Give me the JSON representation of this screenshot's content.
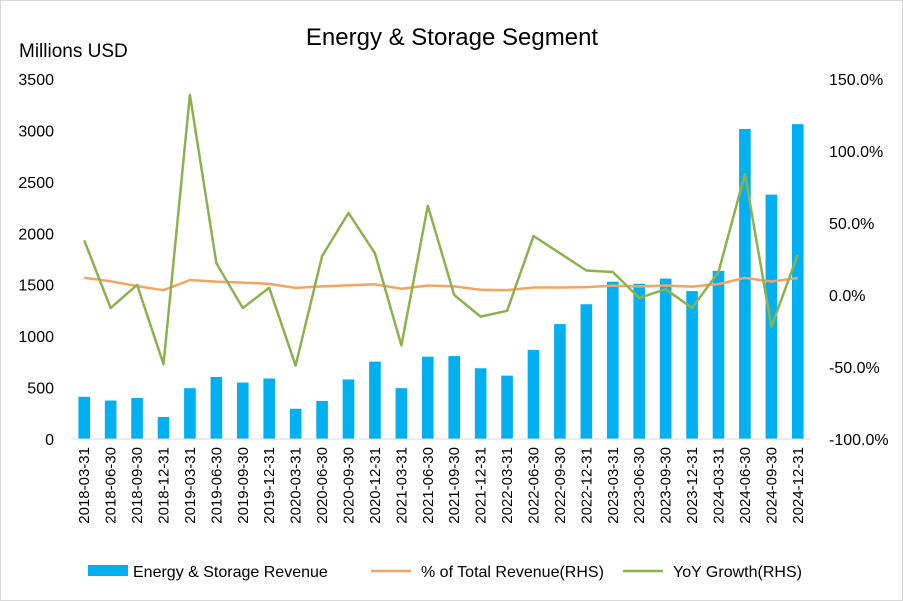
{
  "chart_data": {
    "type": "bar",
    "title": "Energy & Storage Segment",
    "ylabel": "Millions USD",
    "ylim": [
      0,
      3500
    ],
    "yticks": [
      0,
      500,
      1000,
      1500,
      2000,
      2500,
      3000,
      3500
    ],
    "y2lim": [
      -100,
      150
    ],
    "y2ticks": [
      "-100.0%",
      "-50.0%",
      "0.0%",
      "50.0%",
      "100.0%",
      "150.0%"
    ],
    "y2tick_values": [
      -100,
      -50,
      0,
      50,
      100,
      150
    ],
    "grid": false,
    "legend_position": "bottom",
    "categories": [
      "2018-03-31",
      "2018-06-30",
      "2018-09-30",
      "2018-12-31",
      "2019-03-31",
      "2019-06-30",
      "2019-09-30",
      "2019-12-31",
      "2020-03-31",
      "2020-06-30",
      "2020-09-30",
      "2020-12-31",
      "2021-03-31",
      "2021-06-30",
      "2021-09-30",
      "2021-12-31",
      "2022-03-31",
      "2022-06-30",
      "2022-09-30",
      "2022-12-31",
      "2023-03-31",
      "2023-06-30",
      "2023-09-30",
      "2023-12-31",
      "2024-03-31",
      "2024-06-30",
      "2024-09-30",
      "2024-12-31"
    ],
    "series": [
      {
        "name": "Energy & Storage Revenue",
        "type": "bar",
        "axis": "left",
        "color": "#00B0F0",
        "values": [
          410,
          374,
          399,
          214,
          494,
          603,
          549,
          588,
          294,
          370,
          579,
          752,
          494,
          801,
          806,
          688,
          616,
          866,
          1117,
          1310,
          1529,
          1509,
          1559,
          1438,
          1635,
          3014,
          2376,
          3061
        ]
      },
      {
        "name": "% of Total Revenue(RHS)",
        "type": "line",
        "axis": "right",
        "color": "#F4A460",
        "values": [
          12.0,
          9.5,
          6.2,
          3.3,
          10.4,
          9.3,
          8.6,
          7.7,
          4.9,
          6.0,
          6.7,
          7.4,
          4.4,
          6.6,
          6.0,
          3.6,
          3.4,
          5.2,
          5.2,
          5.5,
          6.5,
          6.0,
          6.6,
          5.8,
          7.6,
          11.9,
          9.4,
          11.8
        ]
      },
      {
        "name": "YoY Growth(RHS)",
        "type": "line",
        "axis": "right",
        "color": "#8DB14F",
        "values": [
          38,
          -9,
          7,
          -48,
          139,
          22,
          -9,
          5,
          -49,
          27,
          57,
          29,
          -35,
          62,
          0,
          -15,
          -11,
          41,
          29,
          17,
          16,
          -2,
          4,
          -9,
          16,
          84,
          -22,
          28
        ]
      }
    ]
  }
}
